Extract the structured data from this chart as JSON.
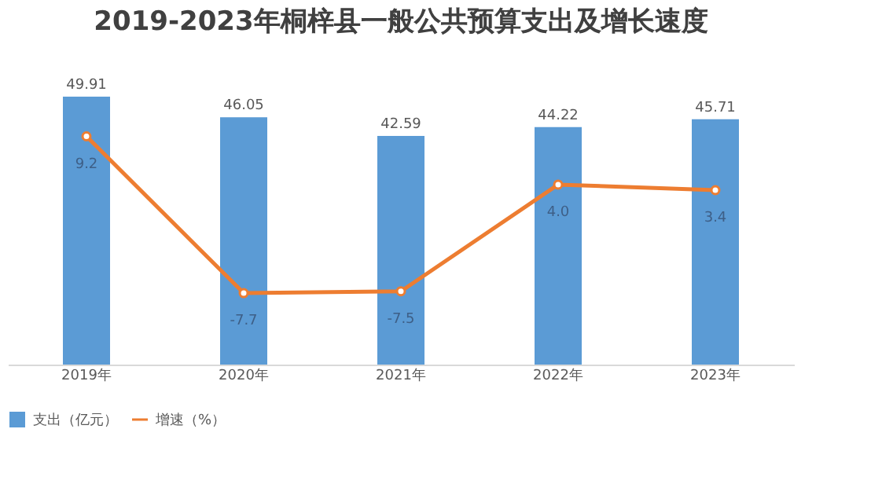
{
  "chart_data": {
    "type": "bar",
    "title": "2019-2023年桐梓县一般公共预算支出及增长速度",
    "categories": [
      "2019年",
      "2020年",
      "2021年",
      "2022年",
      "2023年"
    ],
    "series": [
      {
        "name": "支出（亿元）",
        "color": "#5b9bd5",
        "values": [
          49.91,
          46.05,
          42.59,
          44.22,
          45.71
        ]
      },
      {
        "name": "增速（%）",
        "type": "line",
        "axis": "y2",
        "color": "#ed7d31",
        "values": [
          9.2,
          -7.7,
          -7.5,
          4.0,
          3.4
        ],
        "value_labels": [
          "9.2",
          "-7.7",
          "-7.5",
          "4.0",
          "3.4"
        ]
      }
    ],
    "data_labels": true,
    "grid": false,
    "legend": "bottom",
    "marker": "circle",
    "tick_labels": "x"
  }
}
